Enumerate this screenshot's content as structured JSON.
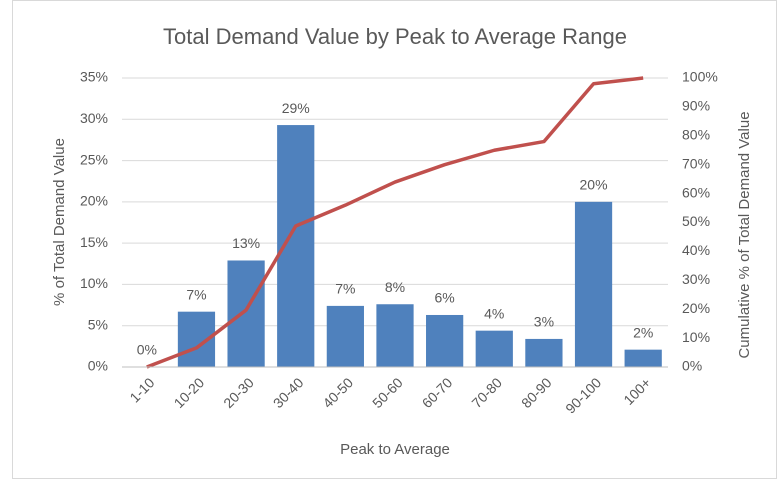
{
  "chart_data": {
    "type": "bar-line",
    "title": "Total Demand Value by Peak to Average Range",
    "x_label": "Peak to Average",
    "y_label": "% of Total Demand Value",
    "y2_label": "Cumulative % of Total Demand Value",
    "categories": [
      "1-10",
      "10-20",
      "20-30",
      "30-40",
      "40-50",
      "50-60",
      "60-70",
      "70-80",
      "80-90",
      "90-100",
      "100+"
    ],
    "series": [
      {
        "type": "bar",
        "color": "#4f81bd",
        "values": [
          0,
          6.7,
          12.9,
          29.3,
          7.4,
          7.6,
          6.3,
          4.4,
          3.4,
          20,
          2.1
        ],
        "value_labels": [
          "0%",
          "7%",
          "13%",
          "29%",
          "7%",
          "8%",
          "6%",
          "4%",
          "3%",
          "20%",
          "2%"
        ]
      },
      {
        "type": "line",
        "color": "#c0504d",
        "axis": "y2",
        "values": [
          0,
          6.6,
          19.7,
          48.8,
          56,
          64,
          70,
          75,
          78,
          98,
          100
        ]
      }
    ],
    "ylim": [
      0,
      35
    ],
    "yticks": [
      {
        "value": 0,
        "label": "0%"
      },
      {
        "value": 5,
        "label": "5%"
      },
      {
        "value": 10,
        "label": "10%"
      },
      {
        "value": 15,
        "label": "15%"
      },
      {
        "value": 20,
        "label": "20%"
      },
      {
        "value": 25,
        "label": "25%"
      },
      {
        "value": 30,
        "label": "30%"
      },
      {
        "value": 35,
        "label": "35%"
      }
    ],
    "y2lim": [
      0,
      100
    ],
    "y2ticks": [
      {
        "value": 0,
        "label": "0%"
      },
      {
        "value": 10,
        "label": "10%"
      },
      {
        "value": 20,
        "label": "20%"
      },
      {
        "value": 30,
        "label": "30%"
      },
      {
        "value": 40,
        "label": "40%"
      },
      {
        "value": 50,
        "label": "50%"
      },
      {
        "value": 60,
        "label": "60%"
      },
      {
        "value": 70,
        "label": "70%"
      },
      {
        "value": 80,
        "label": "80%"
      },
      {
        "value": 90,
        "label": "90%"
      },
      {
        "value": 100,
        "label": "100%"
      }
    ],
    "grid": true
  }
}
